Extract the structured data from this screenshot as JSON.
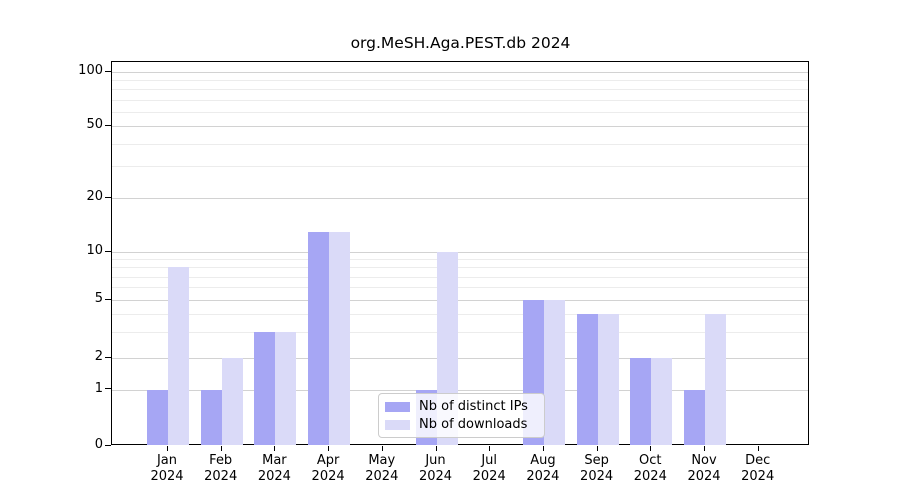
{
  "title": "org.MeSH.Aga.PEST.db 2024",
  "colors": {
    "distinct_ips": "#a6a6f4",
    "downloads": "#dadaf8",
    "major_grid": "#d2d2d2",
    "minor_grid": "#ececec",
    "axis": "#000000",
    "legend_border": "#cccccc"
  },
  "legend": {
    "items": [
      {
        "label": "Nb of distinct IPs",
        "color": "#a6a6f4"
      },
      {
        "label": "Nb of downloads",
        "color": "#dadaf8"
      }
    ],
    "position": "lower center"
  },
  "chart_data": {
    "type": "bar",
    "title": "org.MeSH.Aga.PEST.db 2024",
    "categories": [
      "Jan 2024",
      "Feb 2024",
      "Mar 2024",
      "Apr 2024",
      "May 2024",
      "Jun 2024",
      "Jul 2024",
      "Aug 2024",
      "Sep 2024",
      "Oct 2024",
      "Nov 2024",
      "Dec 2024"
    ],
    "series": [
      {
        "name": "Nb of distinct IPs",
        "color": "#a6a6f4",
        "values": [
          1,
          1,
          3,
          13,
          0,
          1,
          0,
          5,
          4,
          2,
          1,
          0
        ]
      },
      {
        "name": "Nb of downloads",
        "color": "#dadaf8",
        "values": [
          8,
          2,
          3,
          13,
          0,
          10,
          0,
          5,
          4,
          2,
          4,
          0
        ]
      }
    ],
    "xlabel": "",
    "ylabel": "",
    "yscale": "symlog-like",
    "yticks": [
      0,
      1,
      2,
      5,
      10,
      20,
      50,
      100
    ],
    "minor_gridlines": [
      3,
      4,
      6,
      7,
      8,
      9,
      30,
      40,
      60,
      70,
      80,
      90
    ],
    "ylim": [
      0,
      115
    ],
    "grid": true,
    "legend_position": "lower center"
  }
}
